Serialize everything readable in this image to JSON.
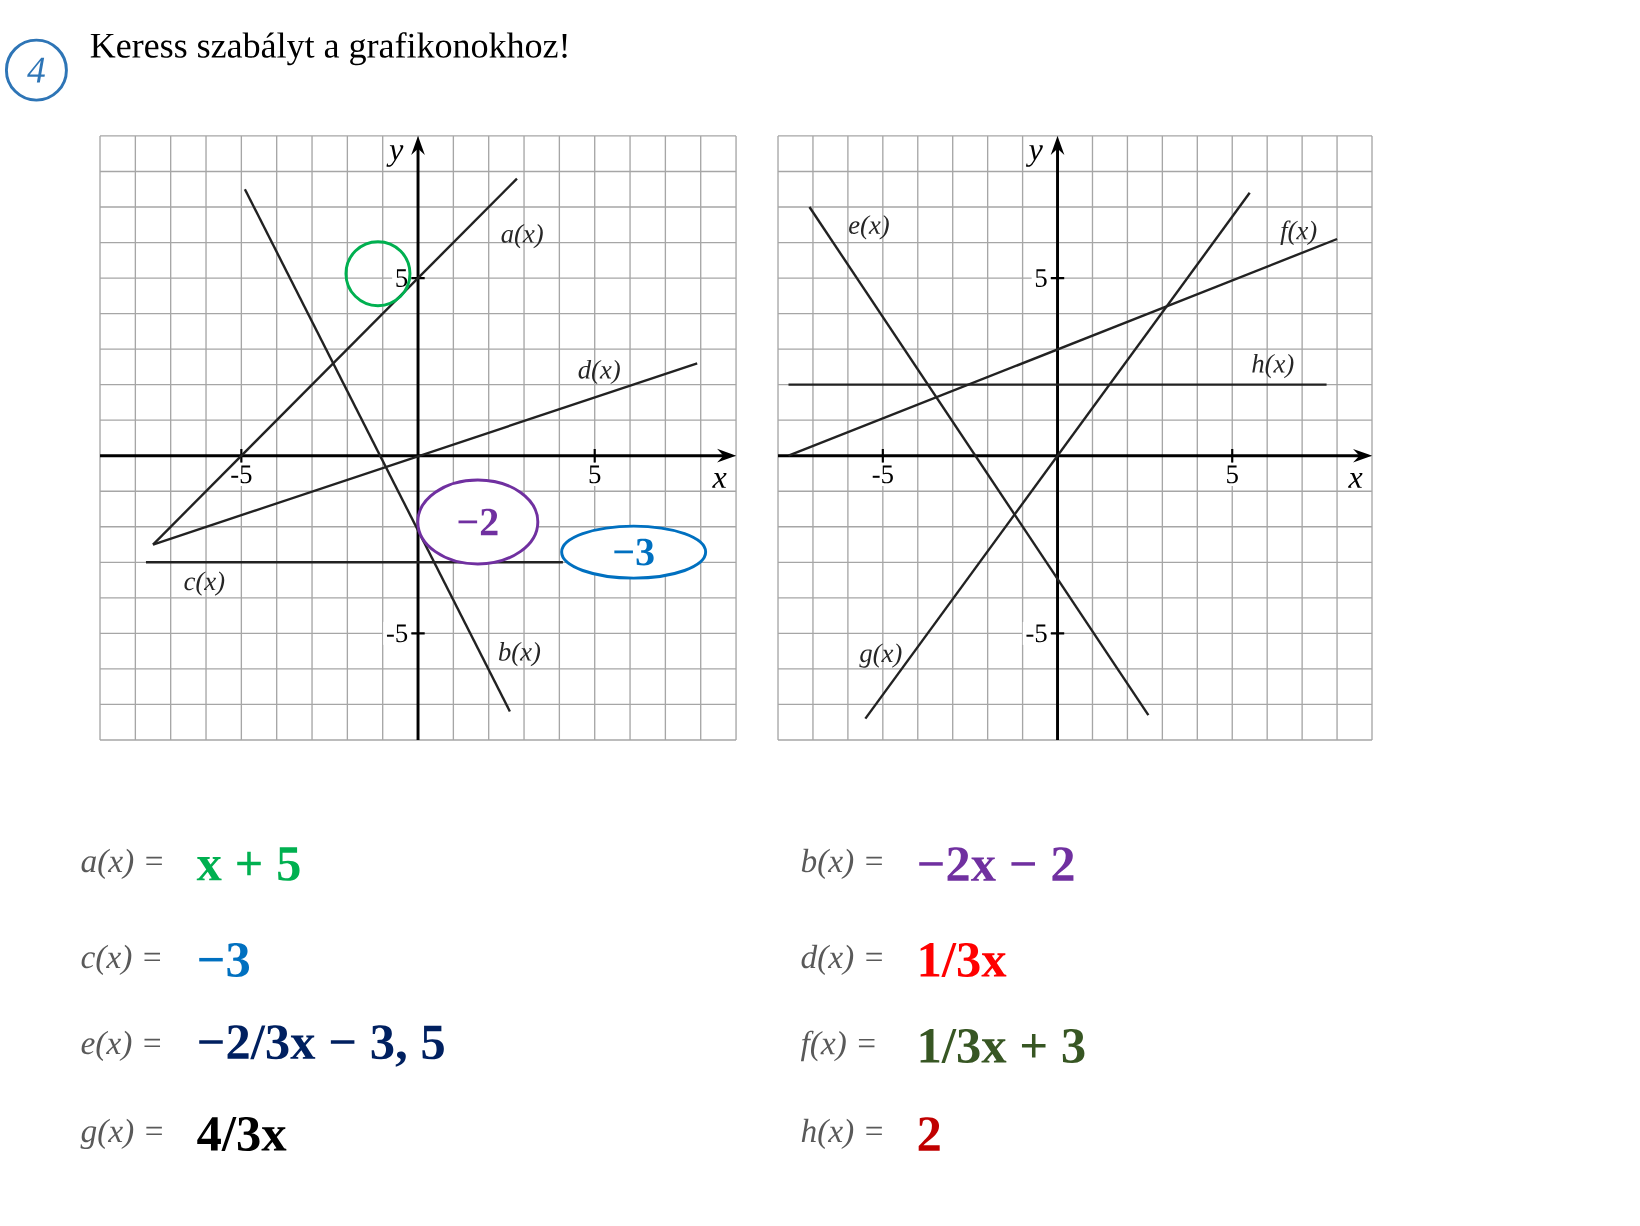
{
  "chart_data": [
    {
      "type": "line",
      "title": "Keress szabályt a grafikonokhoz!",
      "xlabel": "x",
      "ylabel": "y",
      "xlim": [
        -9,
        9
      ],
      "ylim": [
        -8,
        9
      ],
      "xticks": [
        {
          "value": -9,
          "label": null
        },
        {
          "value": -8,
          "label": null
        },
        {
          "value": -7,
          "label": null
        },
        {
          "value": -6,
          "label": null
        },
        -5,
        {
          "value": -4,
          "label": null
        },
        {
          "value": -3,
          "label": null
        },
        {
          "value": -2,
          "label": null
        },
        {
          "value": -1,
          "label": null
        },
        {
          "value": 0,
          "label": null
        },
        {
          "value": 1,
          "label": null
        },
        {
          "value": 2,
          "label": null
        },
        {
          "value": 3,
          "label": null
        },
        {
          "value": 4,
          "label": null
        },
        5,
        {
          "value": 6,
          "label": null
        },
        {
          "value": 7,
          "label": null
        },
        {
          "value": 8,
          "label": null
        },
        {
          "value": 9,
          "label": null
        }
      ],
      "yticks": [
        {
          "value": -8,
          "label": null
        },
        {
          "value": -7,
          "label": null
        },
        {
          "value": -6,
          "label": null
        },
        -5,
        {
          "value": -4,
          "label": null
        },
        {
          "value": -3,
          "label": null
        },
        {
          "value": -2,
          "label": null
        },
        {
          "value": -1,
          "label": null
        },
        {
          "value": 0,
          "label": null
        },
        {
          "value": 1,
          "label": null
        },
        {
          "value": 2,
          "label": null
        },
        {
          "value": 3,
          "label": null
        },
        {
          "value": 4,
          "label": null
        },
        5,
        {
          "value": 6,
          "label": null
        },
        {
          "value": 7,
          "label": null
        },
        {
          "value": 8,
          "label": null
        },
        {
          "value": 9,
          "label": null
        }
      ],
      "grid": true,
      "annotations": [
        "4",
        "−2",
        "−3"
      ],
      "series": [
        {
          "name": "a(x)",
          "color": "#222222",
          "x": [
            -7.5,
            2.8
          ],
          "values": [
            -2.5,
            7.8
          ]
        },
        {
          "name": "b(x)",
          "color": "#222222",
          "x": [
            -4.9,
            2.6
          ],
          "values": [
            7.5,
            -7.2
          ]
        },
        {
          "name": "c(x)",
          "color": "#222222",
          "x": [
            -7.7,
            4.1
          ],
          "values": [
            -3,
            -3
          ]
        },
        {
          "name": "d(x)",
          "color": "#222222",
          "x": [
            -7.5,
            7.9
          ],
          "values": [
            -2.5,
            2.6
          ]
        }
      ]
    },
    {
      "type": "line",
      "xlabel": "x",
      "ylabel": "y",
      "xlim": [
        -8,
        9
      ],
      "ylim": [
        -8,
        9
      ],
      "xticks": [
        {
          "value": -8,
          "label": null
        },
        {
          "value": -7,
          "label": null
        },
        {
          "value": -6,
          "label": null
        },
        -5,
        {
          "value": -4,
          "label": null
        },
        {
          "value": -3,
          "label": null
        },
        {
          "value": -2,
          "label": null
        },
        {
          "value": -1,
          "label": null
        },
        {
          "value": 0,
          "label": null
        },
        {
          "value": 1,
          "label": null
        },
        {
          "value": 2,
          "label": null
        },
        {
          "value": 3,
          "label": null
        },
        {
          "value": 4,
          "label": null
        },
        5,
        {
          "value": 6,
          "label": null
        },
        {
          "value": 7,
          "label": null
        },
        {
          "value": 8,
          "label": null
        },
        {
          "value": 9,
          "label": null
        }
      ],
      "yticks": [
        {
          "value": -8,
          "label": null
        },
        {
          "value": -7,
          "label": null
        },
        {
          "value": -6,
          "label": null
        },
        -5,
        {
          "value": -4,
          "label": null
        },
        {
          "value": -3,
          "label": null
        },
        {
          "value": -2,
          "label": null
        },
        {
          "value": -1,
          "label": null
        },
        {
          "value": 0,
          "label": null
        },
        {
          "value": 1,
          "label": null
        },
        {
          "value": 2,
          "label": null
        },
        {
          "value": 3,
          "label": null
        },
        {
          "value": 4,
          "label": null
        },
        5,
        {
          "value": 6,
          "label": null
        },
        {
          "value": 7,
          "label": null
        },
        {
          "value": 8,
          "label": null
        },
        {
          "value": 9,
          "label": null
        }
      ],
      "grid": true,
      "series": [
        {
          "name": "e(x)",
          "color": "#222222",
          "x": [
            -7.1,
            2.6
          ],
          "values": [
            7.0,
            -7.3
          ]
        },
        {
          "name": "f(x)",
          "color": "#222222",
          "x": [
            -7.7,
            8.0
          ],
          "values": [
            0,
            6.1
          ]
        },
        {
          "name": "g(x)",
          "color": "#222222",
          "x": [
            -5.5,
            5.5
          ],
          "values": [
            -7.4,
            7.4
          ]
        },
        {
          "name": "h(x)",
          "color": "#222222",
          "x": [
            -7.7,
            7.7
          ],
          "values": [
            2,
            2
          ]
        }
      ]
    },
    {
      "type": "other",
      "annotations": [
        "a(x) =",
        "x + 5",
        "b(x) =",
        "−2x − 2",
        "c(x) =",
        "−3",
        "d(x) =",
        "1/3x",
        "e(x) =",
        "−2/3x − 3, 5",
        "f(x) =",
        "1/3x + 3",
        "g(x) =",
        "4/3x",
        "h(x) =",
        "2"
      ]
    }
  ]
}
